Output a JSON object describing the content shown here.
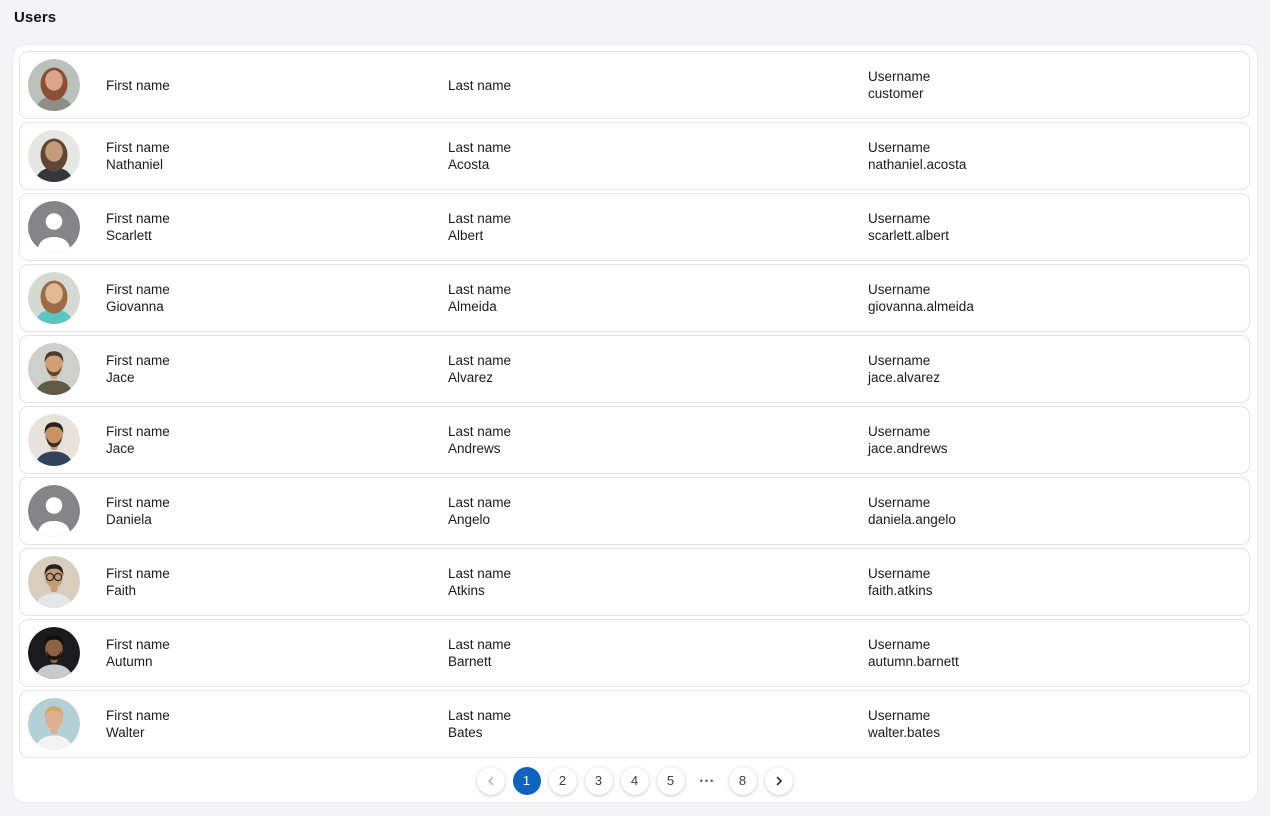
{
  "page": {
    "title": "Users"
  },
  "colors": {
    "page_bg": "#f4f4f6",
    "panel_bg": "#ffffff",
    "card_border": "#e4e4e8",
    "text_primary": "#1a1a20",
    "accent_blue": "#1063bd",
    "active_page_text": "#ffffff",
    "disabled_chevron": "#b9b9c0",
    "enabled_chevron": "#2e2e33",
    "placeholder_avatar_grey": "#858588"
  },
  "list": {
    "field_labels": {
      "first_name": "First name",
      "last_name": "Last name",
      "username": "Username"
    },
    "users": [
      {
        "first_name": "",
        "last_name": "",
        "username": "customer",
        "avatar": {
          "type": "photo",
          "hair_style": "long",
          "bg": "#b9c3bb",
          "hair": "#8a4f35",
          "skin": "#dba489",
          "shirt": "#8e8e8a"
        }
      },
      {
        "first_name": "Nathaniel",
        "last_name": "Acosta",
        "username": "nathaniel.acosta",
        "avatar": {
          "type": "photo",
          "hair_style": "long",
          "bg": "#e6e7e2",
          "hair": "#5f4636",
          "skin": "#c79b78",
          "shirt": "#35373a"
        }
      },
      {
        "first_name": "Scarlett",
        "last_name": "Albert",
        "username": "scarlett.albert",
        "avatar": {
          "type": "placeholder"
        }
      },
      {
        "first_name": "Giovanna",
        "last_name": "Almeida",
        "username": "giovanna.almeida",
        "avatar": {
          "type": "photo",
          "hair_style": "long",
          "bg": "#d6d8d6",
          "hair": "#9c6b46",
          "skin": "#e3b894",
          "shirt": "#5bc6bf"
        }
      },
      {
        "first_name": "Jace",
        "last_name": "Alvarez",
        "username": "jace.alvarez",
        "avatar": {
          "type": "photo",
          "hair_style": "short",
          "beard": true,
          "bg": "#cfcfcd",
          "hair": "#4d3d2d",
          "skin": "#d3a075",
          "shirt": "#615a45"
        }
      },
      {
        "first_name": "Jace",
        "last_name": "Andrews",
        "username": "jace.andrews",
        "avatar": {
          "type": "photo",
          "hair_style": "short",
          "beard": true,
          "bg": "#e7e3dc",
          "hair": "#2b2119",
          "skin": "#c79368",
          "shirt": "#31445c"
        }
      },
      {
        "first_name": "Daniela",
        "last_name": "Angelo",
        "username": "daniela.angelo",
        "avatar": {
          "type": "placeholder"
        }
      },
      {
        "first_name": "Faith",
        "last_name": "Atkins",
        "username": "faith.atkins",
        "avatar": {
          "type": "photo",
          "hair_style": "short",
          "glasses": true,
          "bg": "#d9cdbd",
          "hair": "#26201c",
          "skin": "#c49b74",
          "shirt": "#e4e7ea"
        }
      },
      {
        "first_name": "Autumn",
        "last_name": "Barnett",
        "username": "autumn.barnett",
        "avatar": {
          "type": "photo",
          "hair_style": "short",
          "beard": true,
          "bg": "#1b1b1d",
          "hair": "#101010",
          "skin": "#8d6242",
          "shirt": "#c8c9cb"
        }
      },
      {
        "first_name": "Walter",
        "last_name": "Bates",
        "username": "walter.bates",
        "avatar": {
          "type": "photo",
          "hair_style": "short",
          "bg": "#b5cfd6",
          "hair": "#d2a867",
          "skin": "#dfb090",
          "shirt": "#f2f3f2"
        }
      }
    ]
  },
  "pagination": {
    "items": [
      {
        "kind": "prev",
        "disabled": true
      },
      {
        "kind": "page",
        "label": "1",
        "active": true
      },
      {
        "kind": "page",
        "label": "2"
      },
      {
        "kind": "page",
        "label": "3"
      },
      {
        "kind": "page",
        "label": "4"
      },
      {
        "kind": "page",
        "label": "5"
      },
      {
        "kind": "ellipsis",
        "label": "•••"
      },
      {
        "kind": "page",
        "label": "8"
      },
      {
        "kind": "next",
        "disabled": false
      }
    ]
  }
}
